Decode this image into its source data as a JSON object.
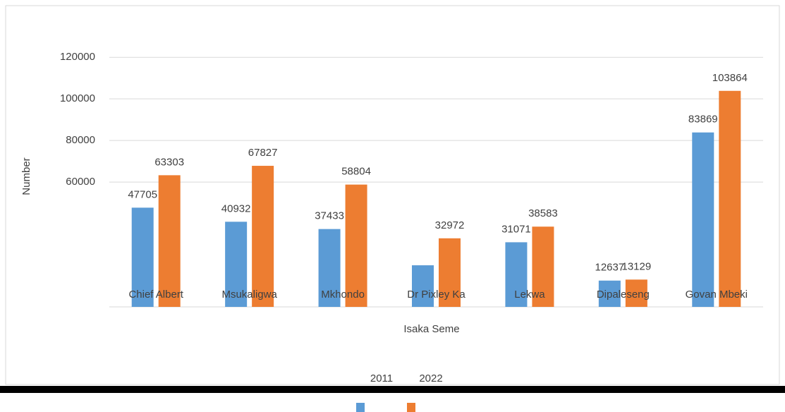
{
  "chart_data": {
    "type": "bar",
    "y_label": "Number",
    "x_label": "Isaka Seme",
    "categories": [
      "Chief Albert",
      "Msukaligwa",
      "Mkhondo",
      "Dr Pixley Ka",
      "Lekwa",
      "Dipaleseng",
      "Govan Mbeki"
    ],
    "series": [
      {
        "name": "2011",
        "color": "#5b9bd5",
        "values": [
          47705,
          40932,
          37433,
          20000,
          31071,
          12637,
          83869
        ],
        "value_labels": [
          "47705",
          "40932",
          "37433",
          null,
          "31071",
          "12637",
          "83869"
        ]
      },
      {
        "name": "2022",
        "color": "#ed7d31",
        "values": [
          63303,
          67827,
          58804,
          32972,
          38583,
          13129,
          103864
        ],
        "value_labels": [
          "63303",
          "67827",
          "58804",
          "32972",
          "38583",
          "13129",
          "103864"
        ]
      }
    ],
    "ylim": [
      0,
      135000
    ],
    "yticks": [
      60000,
      80000,
      100000,
      120000
    ],
    "grid": true
  }
}
